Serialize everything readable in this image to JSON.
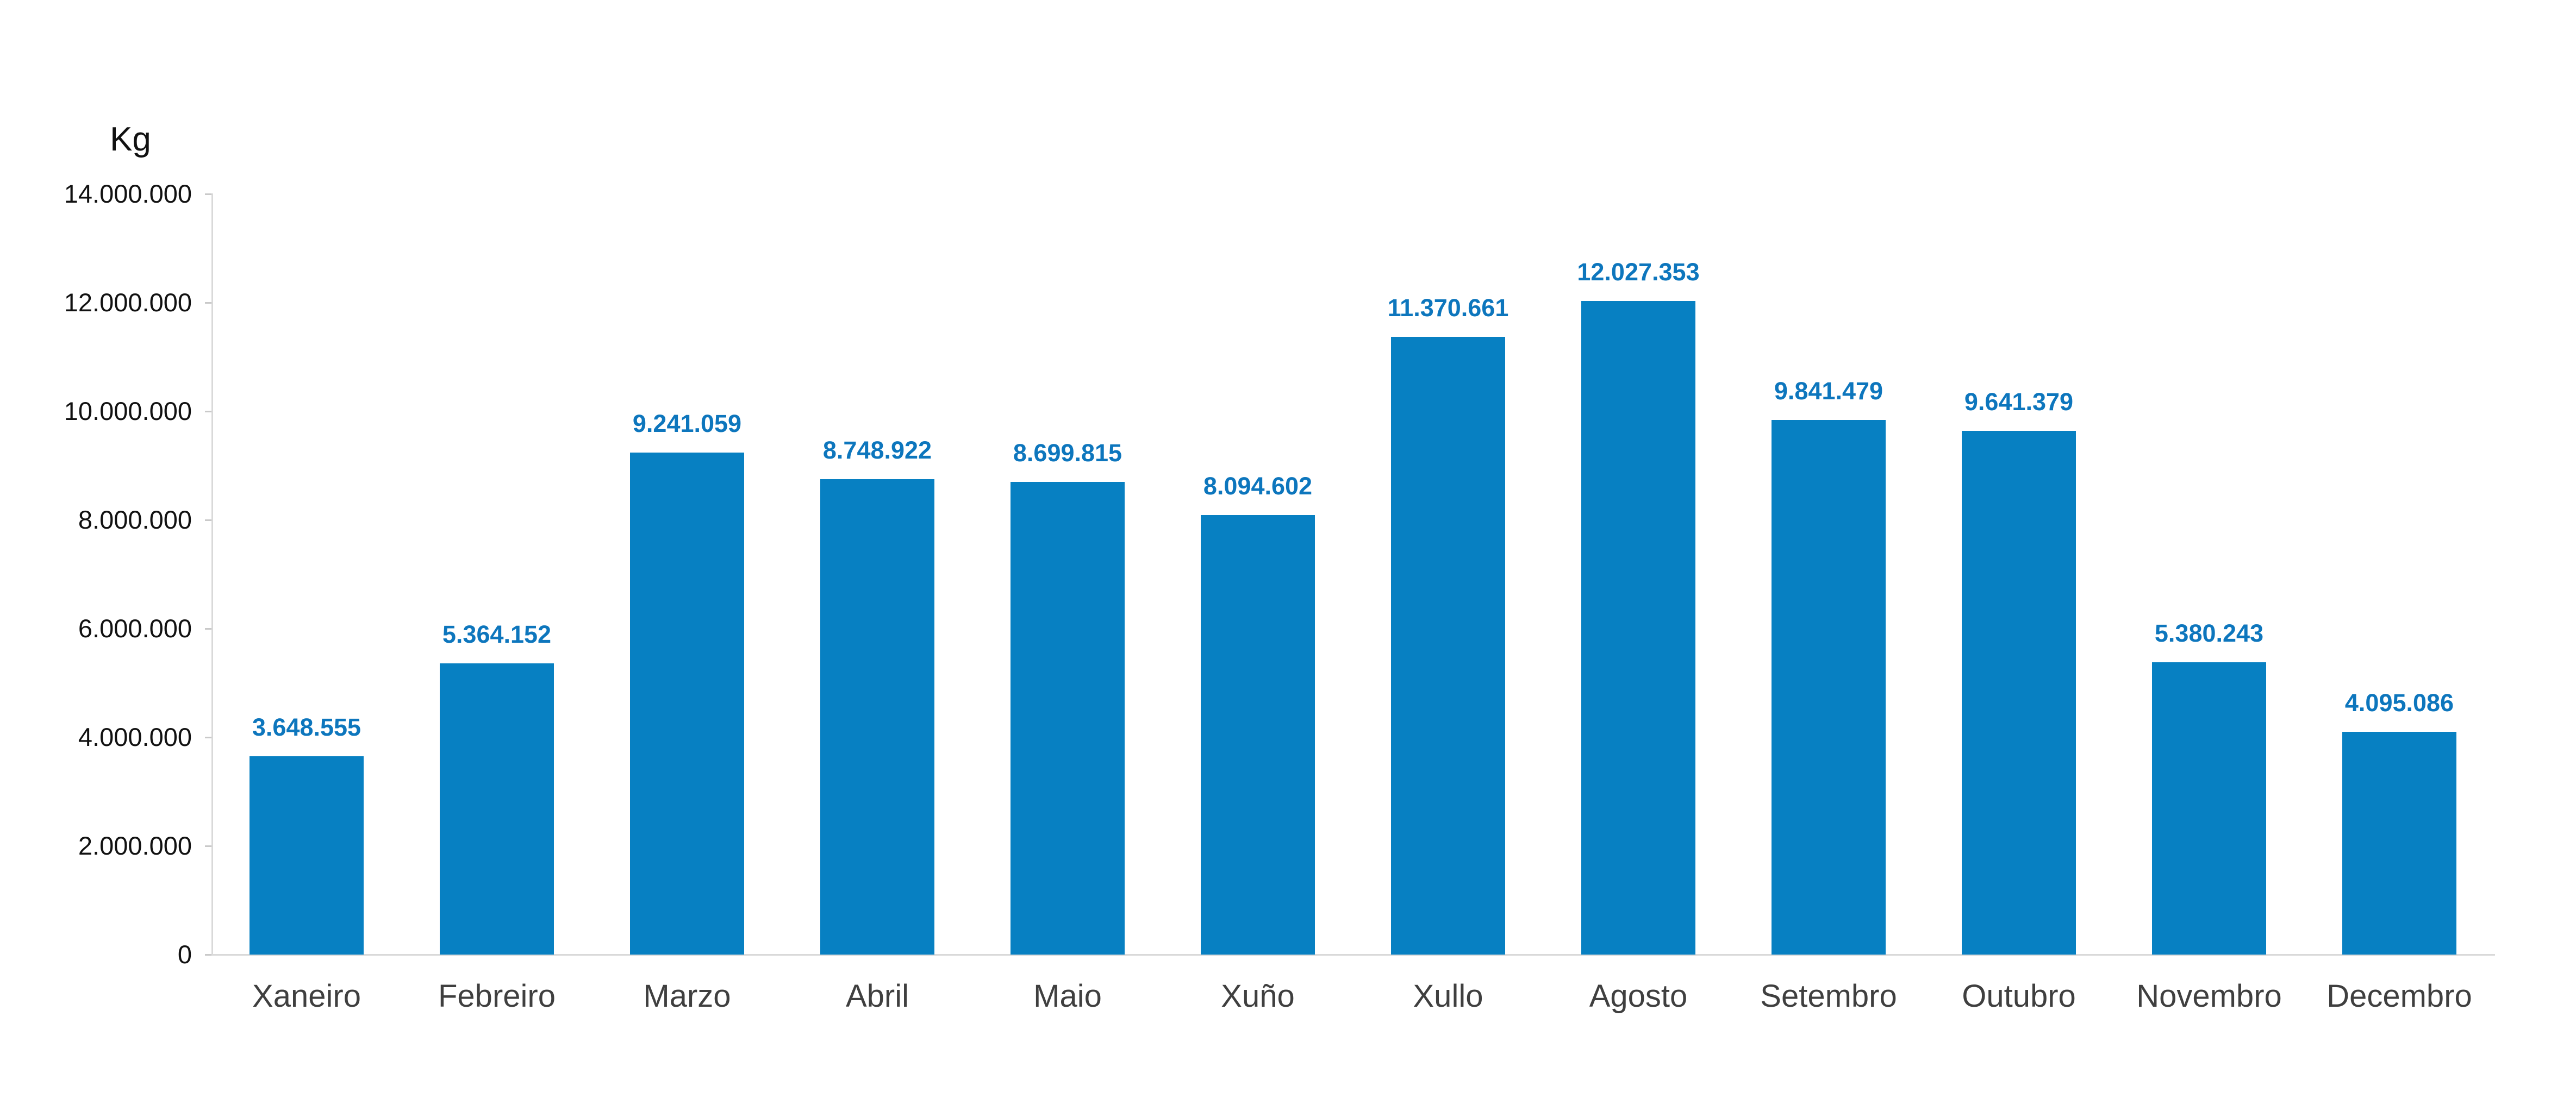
{
  "page": {
    "background": "#ffffff"
  },
  "chart_data": {
    "type": "bar",
    "title": "",
    "xlabel": "",
    "ylabel": "Kg",
    "categories": [
      "Xaneiro",
      "Febreiro",
      "Marzo",
      "Abril",
      "Maio",
      "Xuño",
      "Xullo",
      "Agosto",
      "Setembro",
      "Outubro",
      "Novembro",
      "Decembro"
    ],
    "values": [
      3648555,
      5364152,
      9241059,
      8748922,
      8699815,
      8094602,
      11370661,
      12027353,
      9841479,
      9641379,
      5380243,
      4095086
    ],
    "value_labels": [
      "3.648.555",
      "5.364.152",
      "9.241.059",
      "8.748.922",
      "8.699.815",
      "8.094.602",
      "11.370.661",
      "12.027.353",
      "9.841.479",
      "9.641.379",
      "5.380.243",
      "4.095.086"
    ],
    "y_ticks": [
      "0",
      "2.000.000",
      "4.000.000",
      "6.000.000",
      "8.000.000",
      "10.000.000",
      "12.000.000",
      "14.000.000"
    ],
    "ylim": [
      0,
      14000000
    ],
    "grid": false,
    "legend_position": "none",
    "bar_color": "#0780c2",
    "value_label_color": "#0d76bd",
    "axis_color": "#d9d9d9",
    "tick_label_color": "#111111",
    "category_label_color": "#3f3f3f"
  }
}
